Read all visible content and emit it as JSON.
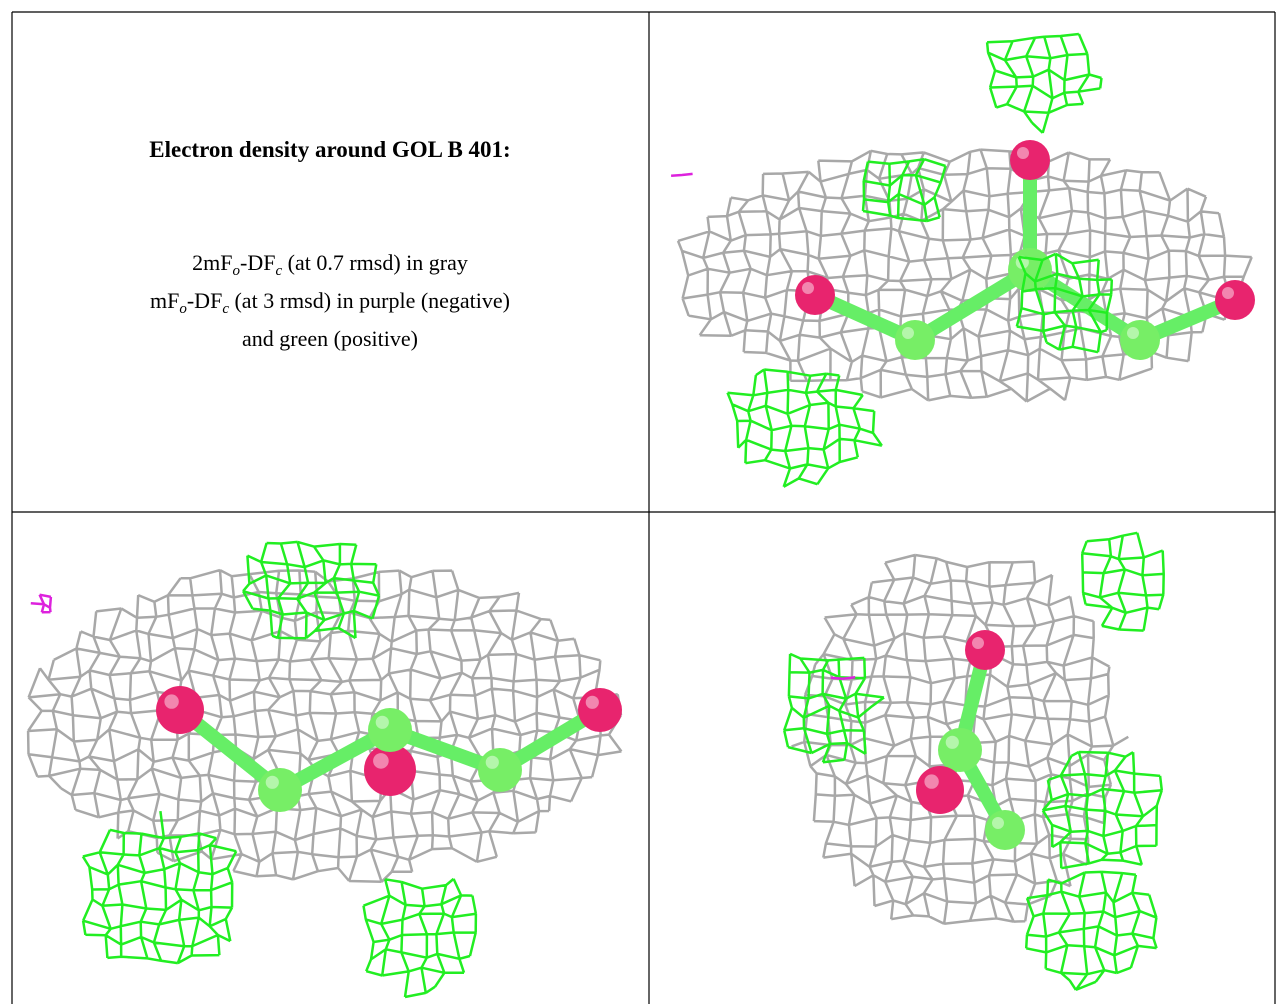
{
  "header": {
    "title": "Electron density around GOL B 401:"
  },
  "legend": [
    {
      "parts": [
        "2mF",
        "o",
        "-DF",
        "c",
        " (at 0.7 rmsd) in gray"
      ]
    },
    {
      "parts": [
        "mF",
        "o",
        "-DF",
        "c",
        " (at 3 rmsd) in purple (negative)"
      ]
    },
    {
      "parts": [
        "and green (positive)"
      ]
    }
  ]
}
